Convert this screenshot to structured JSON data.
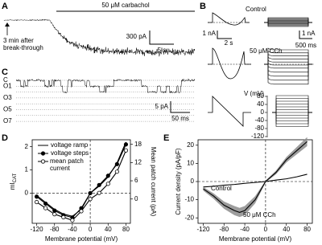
{
  "panel_a": {
    "label": "A",
    "title": "50 μM carbachol",
    "annotation": [
      "3 min after",
      "break-through"
    ],
    "scale_y": "300 pA",
    "scale_x": "5 s"
  },
  "panel_b": {
    "label": "B",
    "control": "Control",
    "drug": "50 μM CCh",
    "scale1_y": "1 nA",
    "scale1_x": "2 s",
    "scale2_y": "1 nA",
    "scale2_x": "500 ms",
    "protocol_label": "V (mV)",
    "protocol_ticks": [
      80,
      40,
      0,
      -40,
      -80,
      -120
    ]
  },
  "panel_c": {
    "label": "C",
    "levels": [
      "C",
      "O1",
      "O3",
      "O5",
      "O7"
    ],
    "scale_y": "5 pA",
    "scale_x": "50 ms"
  },
  "chart_data": [
    {
      "type": "line",
      "label": "D",
      "xlabel": "Membrane potential (mV)",
      "ylabel": "mI",
      "ylabel_sub": "CAT",
      "y2label": "Mean patch current (pA)",
      "x": [
        -120,
        -100,
        -80,
        -60,
        -40,
        -20,
        0,
        20,
        40,
        60,
        80
      ],
      "xlim": [
        -130,
        90
      ],
      "xticks": [
        -120,
        -80,
        -40,
        0,
        40,
        80
      ],
      "ylim": [
        -1.3,
        2.3
      ],
      "yticks": [
        0,
        1,
        2
      ],
      "y2lim": [
        -8,
        19.5
      ],
      "y2ticks": [
        0,
        6,
        12,
        18
      ],
      "zero_lines": true,
      "series": [
        {
          "name": "voltage ramp",
          "color": "#000000",
          "marker": "none",
          "values": [
            -0.1,
            -0.4,
            -0.7,
            -0.9,
            -1.0,
            -0.7,
            0.0,
            0.3,
            0.7,
            1.3,
            2.2
          ]
        },
        {
          "name": "voltage steps",
          "color": "#000000",
          "marker": "filled",
          "values": [
            -0.15,
            -0.45,
            -0.75,
            -0.95,
            -1.05,
            -0.65,
            0.0,
            0.35,
            0.75,
            1.25,
            2.1
          ]
        },
        {
          "name": "mean patch current",
          "color": "#000000",
          "marker": "open",
          "axis": "y2",
          "values": [
            -1,
            -3,
            -5,
            -6,
            -7,
            -4,
            0,
            2,
            5,
            9,
            16
          ]
        }
      ]
    },
    {
      "type": "line",
      "label": "E",
      "xlabel": "Membrane potential (mV)",
      "ylabel": "Current density (pA/pF)",
      "x": [
        -120,
        -100,
        -80,
        -60,
        -50,
        -40,
        -20,
        0,
        20,
        40,
        60,
        80
      ],
      "xlim": [
        -130,
        90
      ],
      "xticks": [
        -120,
        -80,
        -40,
        0,
        40,
        80
      ],
      "ylim": [
        -23,
        23
      ],
      "yticks": [
        -20,
        -10,
        0,
        10,
        20
      ],
      "zero_lines": true,
      "series": [
        {
          "name": "Control",
          "color": "#000000",
          "values": [
            -3,
            -2.6,
            -2,
            -1.6,
            -1.3,
            -1,
            -0.5,
            0,
            0.8,
            1.5,
            2.6,
            4
          ]
        },
        {
          "name": "50 μM CCh",
          "color": "#000000",
          "band_color": "#8c8c8c",
          "values": [
            -4,
            -8,
            -13,
            -16,
            -17,
            -16,
            -10,
            0,
            5,
            12,
            17,
            22
          ],
          "errors": [
            1,
            1.5,
            2,
            2.5,
            2.5,
            2.5,
            2,
            0.5,
            1,
            1.5,
            2,
            2.5
          ]
        }
      ]
    }
  ]
}
